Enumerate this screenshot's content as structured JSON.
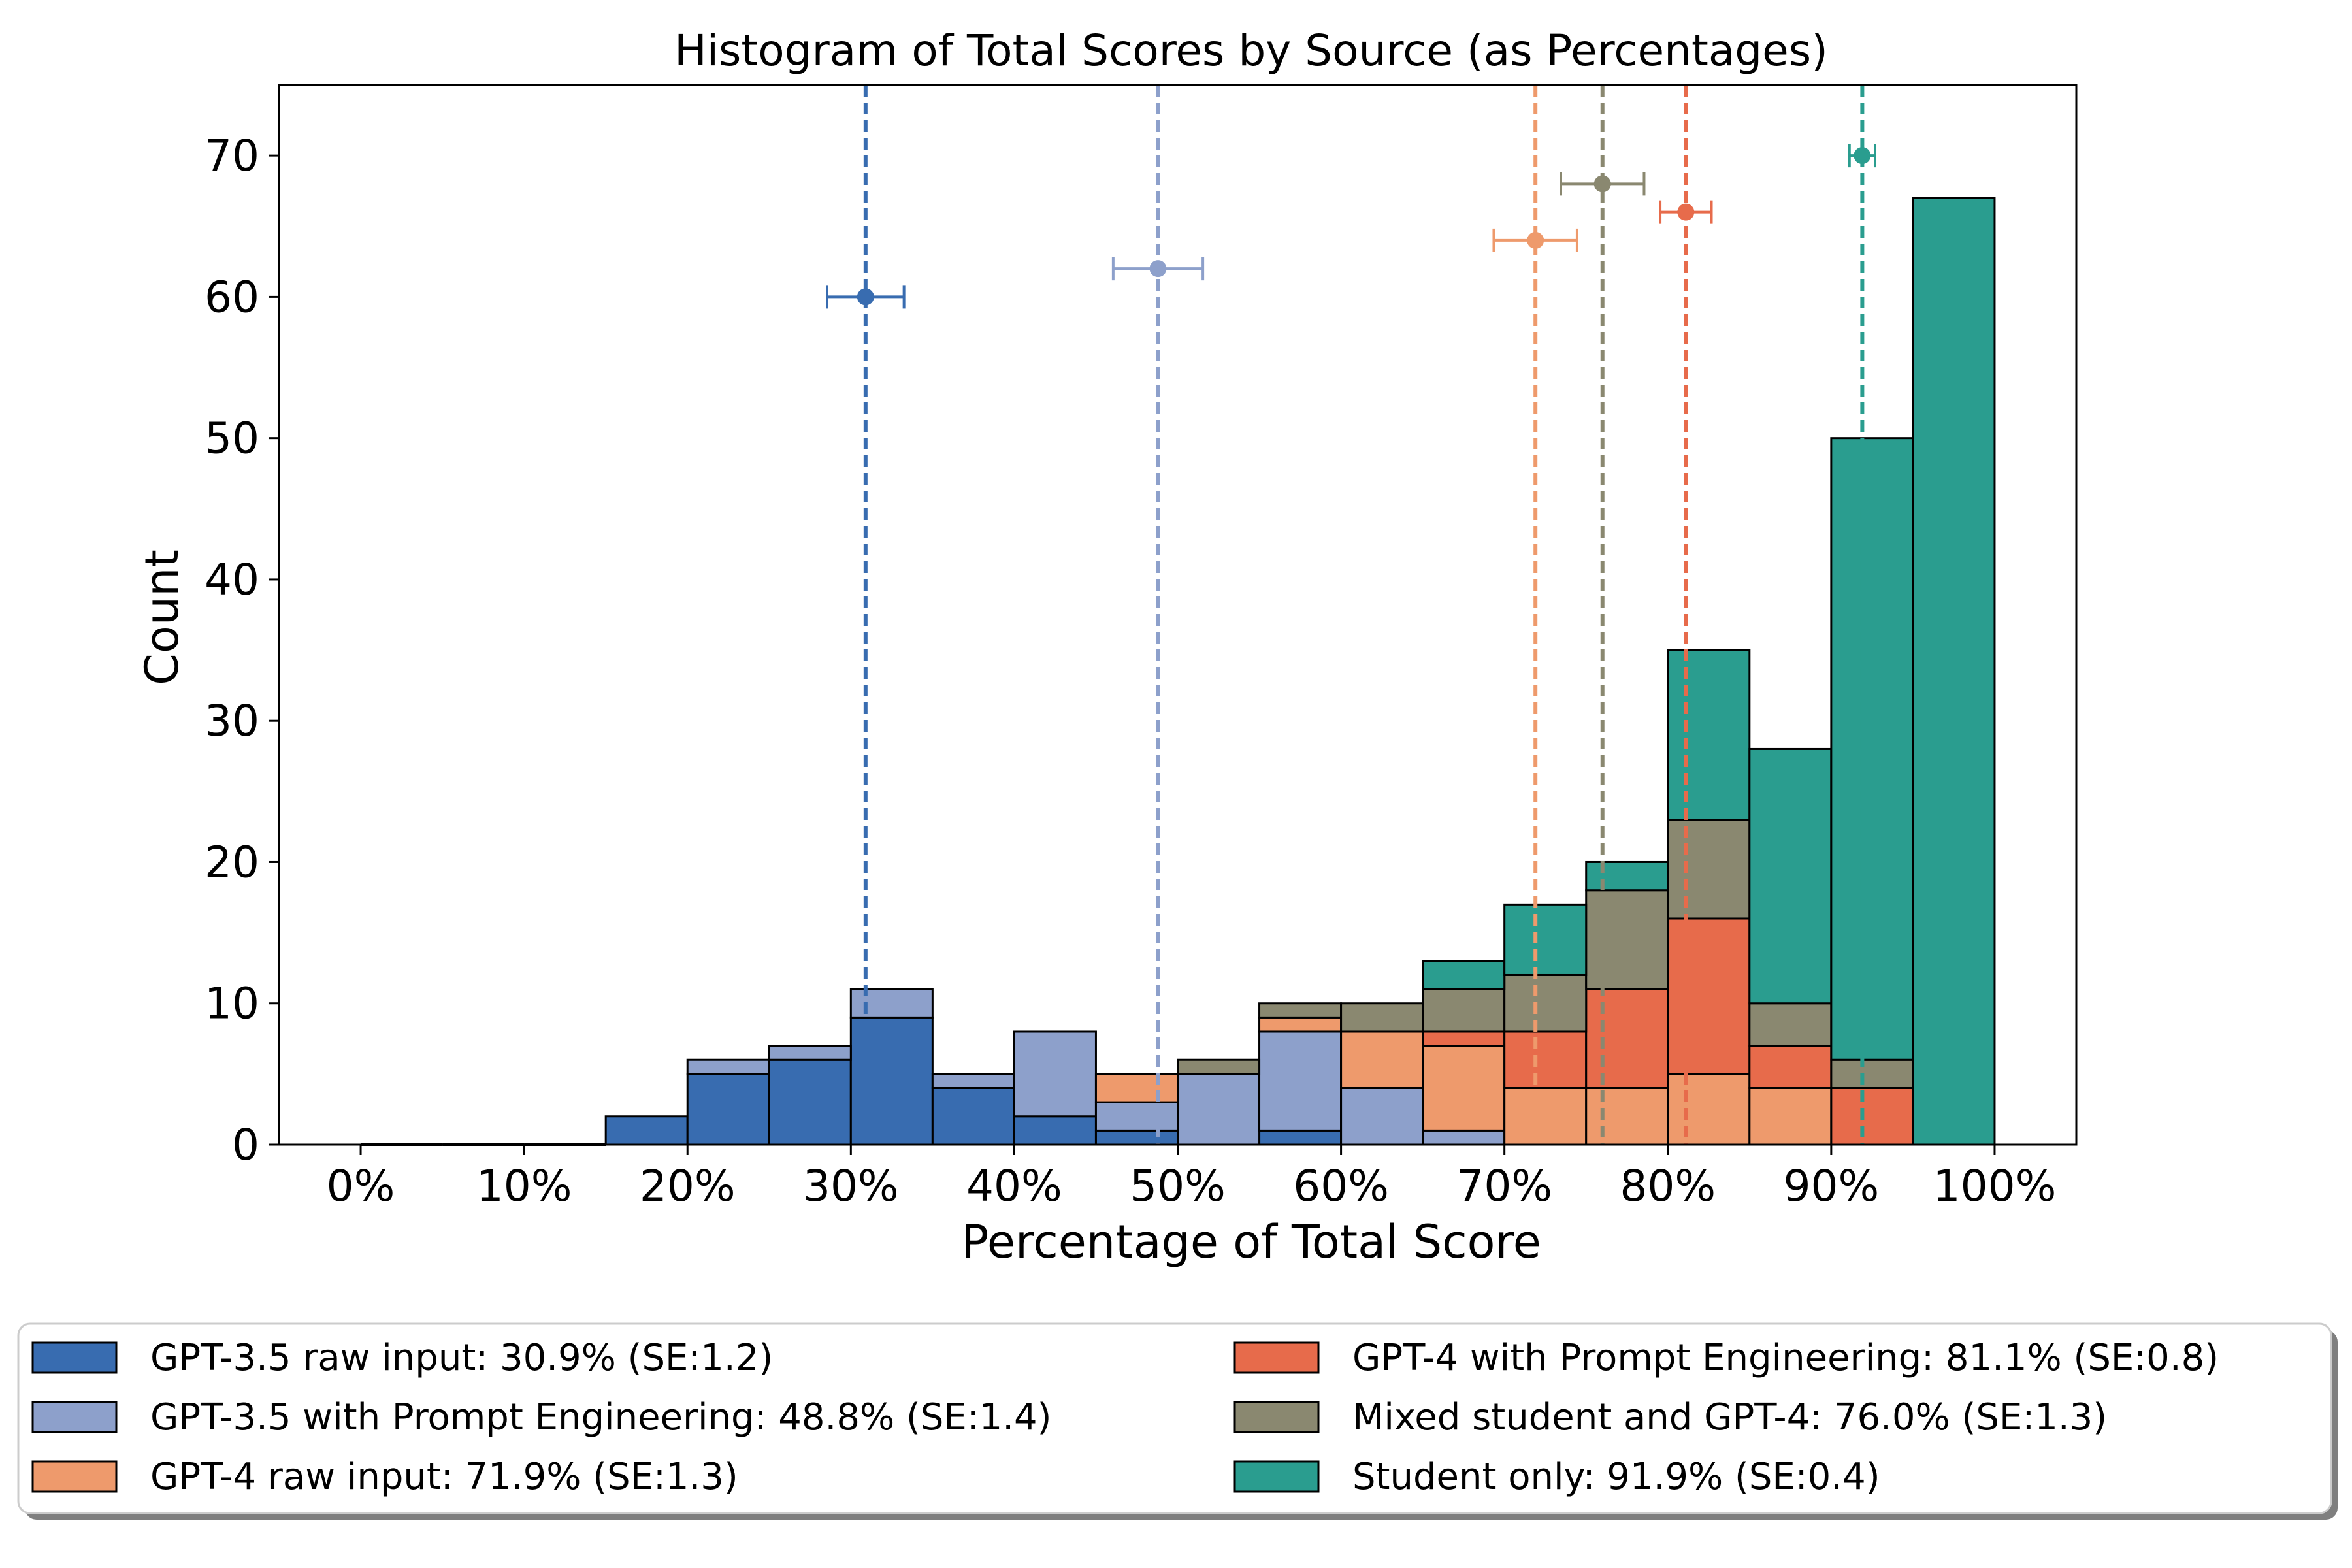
{
  "chart_data": {
    "type": "bar",
    "stacked": true,
    "title": "Histogram of Total Scores by Source (as Percentages)",
    "xlabel": "Percentage of Total Score",
    "ylabel": "Count",
    "xlim": [
      -5,
      105
    ],
    "ylim": [
      0,
      75
    ],
    "x_ticks": [
      0,
      10,
      20,
      30,
      40,
      50,
      60,
      70,
      80,
      90,
      100
    ],
    "x_tick_labels": [
      "0%",
      "10%",
      "20%",
      "30%",
      "40%",
      "50%",
      "60%",
      "70%",
      "80%",
      "90%",
      "100%"
    ],
    "y_ticks": [
      0,
      10,
      20,
      30,
      40,
      50,
      60,
      70
    ],
    "y_tick_labels": [
      "0",
      "10",
      "20",
      "30",
      "40",
      "50",
      "60",
      "70"
    ],
    "bin_edges": [
      0,
      5,
      10,
      15,
      20,
      25,
      30,
      35,
      40,
      45,
      50,
      55,
      60,
      65,
      70,
      75,
      80,
      85,
      90,
      95,
      100
    ],
    "grid": false,
    "legend_position": "below",
    "series": [
      {
        "name": "GPT-3.5 raw input",
        "label": "GPT-3.5 raw input: 30.9% (SE:1.2)",
        "color": "#386cb0",
        "values": [
          0,
          0,
          0,
          2,
          5,
          6,
          9,
          4,
          2,
          1,
          0,
          1,
          0,
          0,
          0,
          0,
          0,
          0,
          0,
          0
        ],
        "mean": 30.9,
        "se": 1.2,
        "marker_y": 60
      },
      {
        "name": "GPT-3.5 with Prompt Engineering",
        "label": "GPT-3.5 with Prompt Engineering: 48.8% (SE:1.4)",
        "color": "#8da0cb",
        "values": [
          0,
          0,
          0,
          0,
          1,
          1,
          2,
          1,
          6,
          2,
          5,
          7,
          4,
          1,
          0,
          0,
          0,
          0,
          0,
          0
        ],
        "mean": 48.8,
        "se": 1.4,
        "marker_y": 62
      },
      {
        "name": "GPT-4 raw input",
        "label": "GPT-4 raw input: 71.9% (SE:1.3)",
        "color": "#ee9a6c",
        "values": [
          0,
          0,
          0,
          0,
          0,
          0,
          0,
          0,
          0,
          2,
          0,
          1,
          4,
          6,
          4,
          4,
          5,
          4,
          0,
          0
        ],
        "mean": 71.9,
        "se": 1.3,
        "marker_y": 64
      },
      {
        "name": "GPT-4 with Prompt Engineering",
        "label": "GPT-4 with Prompt Engineering: 81.1% (SE:0.8)",
        "color": "#e76b4b",
        "values": [
          0,
          0,
          0,
          0,
          0,
          0,
          0,
          0,
          0,
          0,
          0,
          0,
          0,
          1,
          4,
          7,
          11,
          3,
          4,
          0
        ],
        "mean": 81.1,
        "se": 0.8,
        "marker_y": 66
      },
      {
        "name": "Mixed student and GPT-4",
        "label": "Mixed student and GPT-4: 76.0% (SE:1.3)",
        "color": "#8a8870",
        "values": [
          0,
          0,
          0,
          0,
          0,
          0,
          0,
          0,
          0,
          0,
          1,
          1,
          2,
          3,
          4,
          7,
          7,
          3,
          2,
          0
        ],
        "mean": 76.0,
        "se": 1.3,
        "marker_y": 68
      },
      {
        "name": "Student only",
        "label": "Student only: 91.9% (SE:0.4)",
        "color": "#2a9d8f",
        "values": [
          0,
          0,
          0,
          0,
          0,
          0,
          0,
          0,
          0,
          0,
          0,
          0,
          0,
          2,
          5,
          2,
          12,
          18,
          44,
          67
        ],
        "mean": 91.9,
        "se": 0.4,
        "marker_y": 70
      }
    ]
  }
}
